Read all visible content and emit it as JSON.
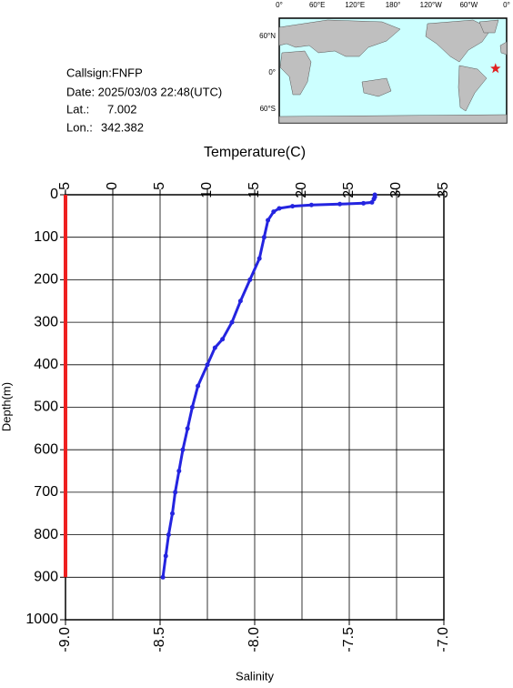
{
  "info": {
    "callsign": "Callsign:FNFP",
    "date": "Date:  2025/03/03 22:48(UTC)",
    "lat_label": "Lat.:",
    "lat": 7.002,
    "lon_label": "Lon.:",
    "lon": 342.382
  },
  "map": {
    "lon_labels": [
      "0°",
      "60°E",
      "120°E",
      "180°",
      "120°W",
      "60°W",
      "0°"
    ],
    "lat_labels": [
      "60°N",
      "0°",
      "60°S"
    ]
  },
  "chart_data": {
    "type": "line",
    "xlabel": "Temperature(C)",
    "x2label": "Salinity",
    "ylabel": "Depth(m)",
    "xlim": [
      -5,
      35
    ],
    "xticks": [
      -5,
      0,
      5,
      10,
      15,
      20,
      25,
      30,
      35
    ],
    "x2lim": [
      -9,
      -7
    ],
    "x2ticks": [
      {
        "value": -9,
        "label": "-9.0"
      },
      -8.5,
      {
        "value": -8,
        "label": "-8.0"
      },
      -7.5,
      {
        "value": -7,
        "label": "-7.0"
      }
    ],
    "ylim": [
      0,
      1000
    ],
    "yticks": [
      0,
      100,
      200,
      300,
      400,
      500,
      600,
      700,
      800,
      900,
      1000
    ],
    "y_inverted": true,
    "grid": true,
    "series": [
      {
        "color": "#2424e0",
        "axis": "x",
        "depth": [
          0,
          5,
          10,
          18,
          20,
          22,
          24,
          27,
          32,
          40,
          60,
          100,
          150,
          200,
          250,
          300,
          340,
          360,
          400,
          450,
          500,
          550,
          600,
          650,
          700,
          750,
          800,
          850,
          900
        ],
        "values": [
          27.7,
          27.7,
          27.6,
          27.4,
          26.5,
          24,
          21,
          19,
          17.6,
          17.0,
          16.4,
          16.0,
          15.5,
          14.5,
          13.5,
          12.6,
          11.6,
          10.8,
          10.0,
          9.0,
          8.4,
          7.9,
          7.4,
          7.0,
          6.6,
          6.3,
          5.9,
          5.6,
          5.3
        ]
      },
      {
        "color": "#ee2020",
        "axis": "x2",
        "depth": [
          0,
          900
        ],
        "values": [
          -9,
          -9
        ]
      }
    ]
  }
}
